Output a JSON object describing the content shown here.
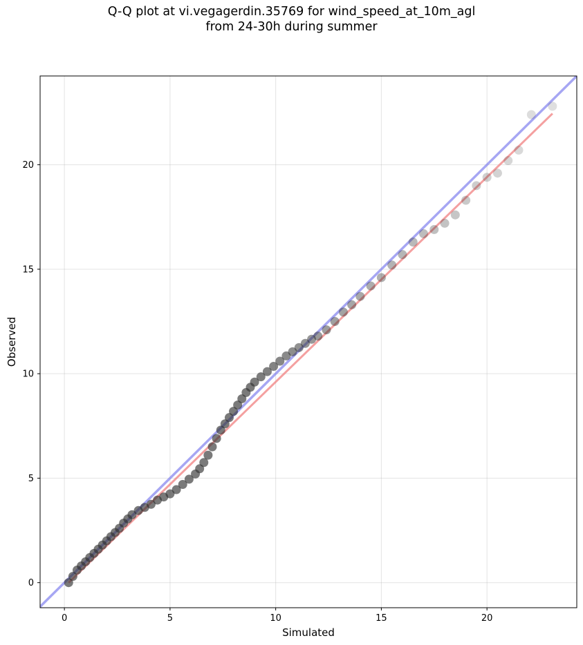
{
  "chart_data": {
    "type": "scatter",
    "title_line1": "Q-Q plot at vi.vegagerdin.35769 for wind_speed_at_10m_agl",
    "title_line2": "from 24-30h during summer",
    "xlabel": "Simulated",
    "ylabel": "Observed",
    "xlim": [
      -1.15,
      24.25
    ],
    "ylim": [
      -1.2,
      24.25
    ],
    "xticks": [
      0,
      5,
      10,
      15,
      20
    ],
    "yticks": [
      0,
      5,
      10,
      15,
      20
    ],
    "grid": true,
    "colors": {
      "points": "#333333",
      "identity_line": "#8080ee",
      "fit_line": "#f08080"
    },
    "identity_line": {
      "x": [
        -1.15,
        24.25
      ],
      "y": [
        -1.15,
        24.25
      ]
    },
    "fit_line": {
      "x": [
        0.2,
        23.1
      ],
      "y": [
        0.0,
        22.45
      ]
    },
    "quantiles": {
      "x": [
        0.2,
        0.4,
        0.6,
        0.8,
        1.0,
        1.2,
        1.4,
        1.6,
        1.8,
        2.0,
        2.2,
        2.4,
        2.6,
        2.8,
        3.0,
        3.2,
        3.5,
        3.8,
        4.1,
        4.4,
        4.7,
        5.0,
        5.3,
        5.6,
        5.9,
        6.2,
        6.4,
        6.6,
        6.8,
        7.0,
        7.2,
        7.4,
        7.6,
        7.8,
        8.0,
        8.2,
        8.4,
        8.6,
        8.8,
        9.0,
        9.3,
        9.6,
        9.9,
        10.2,
        10.5,
        10.8,
        11.1,
        11.4,
        11.7,
        12.0,
        12.4,
        12.8,
        13.2,
        13.6,
        14.0,
        14.5,
        15.0,
        15.5,
        16.0,
        16.5,
        17.0,
        17.5,
        18.0,
        18.5,
        19.0,
        19.5,
        20.0,
        20.5,
        21.0,
        21.5,
        22.1,
        23.1
      ],
      "y": [
        0.0,
        0.3,
        0.6,
        0.8,
        1.0,
        1.2,
        1.4,
        1.6,
        1.8,
        2.0,
        2.2,
        2.4,
        2.6,
        2.85,
        3.05,
        3.25,
        3.45,
        3.6,
        3.75,
        3.95,
        4.1,
        4.25,
        4.45,
        4.7,
        4.95,
        5.2,
        5.45,
        5.75,
        6.1,
        6.5,
        6.9,
        7.3,
        7.6,
        7.9,
        8.2,
        8.5,
        8.8,
        9.1,
        9.35,
        9.6,
        9.85,
        10.1,
        10.35,
        10.6,
        10.85,
        11.05,
        11.25,
        11.45,
        11.65,
        11.8,
        12.1,
        12.5,
        12.95,
        13.3,
        13.7,
        14.2,
        14.6,
        15.2,
        15.7,
        16.3,
        16.7,
        16.9,
        17.2,
        17.6,
        18.3,
        19.0,
        19.4,
        19.6,
        20.2,
        20.7,
        22.4,
        22.8
      ]
    }
  }
}
